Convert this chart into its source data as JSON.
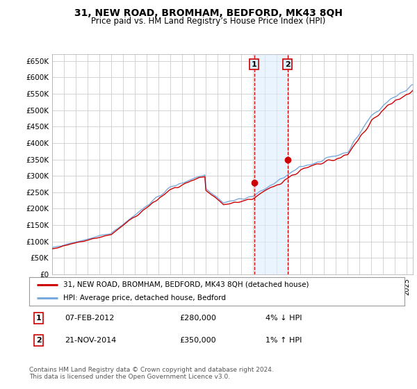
{
  "title": "31, NEW ROAD, BROMHAM, BEDFORD, MK43 8QH",
  "subtitle": "Price paid vs. HM Land Registry’s House Price Index (HPI)",
  "title_fontsize": 10,
  "subtitle_fontsize": 8.5,
  "ylim": [
    0,
    670000
  ],
  "ylabel_vals": [
    0,
    50000,
    100000,
    150000,
    200000,
    250000,
    300000,
    350000,
    400000,
    450000,
    500000,
    550000,
    600000,
    650000
  ],
  "xlim_start": 1995.0,
  "xlim_end": 2025.5,
  "transaction1_year": 2012.08,
  "transaction1_price": 280000,
  "transaction1_label": "1",
  "transaction1_date": "07-FEB-2012",
  "transaction1_amount": "£280,000",
  "transaction1_hpi": "4% ↓ HPI",
  "transaction2_year": 2014.9,
  "transaction2_price": 350000,
  "transaction2_label": "2",
  "transaction2_date": "21-NOV-2014",
  "transaction2_amount": "£350,000",
  "transaction2_hpi": "1% ↑ HPI",
  "line_color_price": "#cc0000",
  "line_color_hpi": "#7aaadd",
  "marker_color": "#cc0000",
  "transaction_box_fill": "#ddeeff",
  "legend_label_price": "31, NEW ROAD, BROMHAM, BEDFORD, MK43 8QH (detached house)",
  "legend_label_hpi": "HPI: Average price, detached house, Bedford",
  "footer": "Contains HM Land Registry data © Crown copyright and database right 2024.\nThis data is licensed under the Open Government Licence v3.0.",
  "bg_color": "#ffffff",
  "grid_color": "#cccccc"
}
